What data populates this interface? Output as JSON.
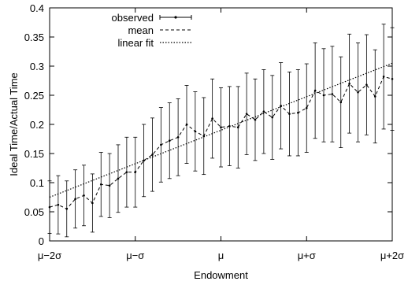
{
  "chart_data": {
    "type": "line",
    "xlabel": "Endowment",
    "ylabel": "Ideal Time/Actual Time",
    "xlim": [
      -2,
      2
    ],
    "ylim": [
      0,
      0.4
    ],
    "x_ticks": [
      {
        "value": -2,
        "label": "μ−2σ"
      },
      {
        "value": -1,
        "label": "μ−σ"
      },
      {
        "value": 0,
        "label": "μ"
      },
      {
        "value": 1,
        "label": "μ+σ"
      },
      {
        "value": 2,
        "label": "μ+2σ"
      }
    ],
    "y_ticks": [
      {
        "value": 0,
        "label": "0"
      },
      {
        "value": 0.05,
        "label": "0.05"
      },
      {
        "value": 0.1,
        "label": "0.1"
      },
      {
        "value": 0.15,
        "label": "0.15"
      },
      {
        "value": 0.2,
        "label": "0.2"
      },
      {
        "value": 0.25,
        "label": "0.25"
      },
      {
        "value": 0.3,
        "label": "0.3"
      },
      {
        "value": 0.35,
        "label": "0.35"
      },
      {
        "value": 0.4,
        "label": "0.4"
      }
    ],
    "legend_position": "top-left",
    "grid": false,
    "series": [
      {
        "name": "observed",
        "style": "errorbar",
        "x": [
          -2.0,
          -1.9,
          -1.8,
          -1.7,
          -1.6,
          -1.5,
          -1.4,
          -1.3,
          -1.2,
          -1.1,
          -1.0,
          -0.9,
          -0.8,
          -0.7,
          -0.6,
          -0.5,
          -0.4,
          -0.3,
          -0.2,
          -0.1,
          0.0,
          0.1,
          0.2,
          0.3,
          0.4,
          0.5,
          0.6,
          0.7,
          0.8,
          0.9,
          1.0,
          1.1,
          1.2,
          1.3,
          1.4,
          1.5,
          1.6,
          1.7,
          1.8,
          1.9,
          2.0
        ],
        "y": [
          0.058,
          0.062,
          0.055,
          0.072,
          0.078,
          0.065,
          0.097,
          0.095,
          0.107,
          0.118,
          0.118,
          0.138,
          0.148,
          0.165,
          0.172,
          0.178,
          0.2,
          0.188,
          0.18,
          0.21,
          0.195,
          0.197,
          0.195,
          0.218,
          0.208,
          0.222,
          0.212,
          0.232,
          0.218,
          0.22,
          0.228,
          0.258,
          0.25,
          0.252,
          0.238,
          0.27,
          0.255,
          0.268,
          0.248,
          0.282,
          0.278
        ],
        "err": [
          0.045,
          0.05,
          0.048,
          0.05,
          0.052,
          0.05,
          0.055,
          0.055,
          0.058,
          0.06,
          0.06,
          0.062,
          0.063,
          0.064,
          0.065,
          0.066,
          0.067,
          0.068,
          0.066,
          0.068,
          0.068,
          0.068,
          0.07,
          0.07,
          0.07,
          0.072,
          0.072,
          0.074,
          0.072,
          0.074,
          0.076,
          0.082,
          0.08,
          0.082,
          0.078,
          0.085,
          0.085,
          0.086,
          0.08,
          0.09,
          0.088
        ]
      },
      {
        "name": "mean",
        "style": "dashed",
        "x": [
          -2.0,
          -1.9,
          -1.8,
          -1.7,
          -1.6,
          -1.5,
          -1.4,
          -1.3,
          -1.2,
          -1.1,
          -1.0,
          -0.9,
          -0.8,
          -0.7,
          -0.6,
          -0.5,
          -0.4,
          -0.3,
          -0.2,
          -0.1,
          0.0,
          0.1,
          0.2,
          0.3,
          0.4,
          0.5,
          0.6,
          0.7,
          0.8,
          0.9,
          1.0,
          1.1,
          1.2,
          1.3,
          1.4,
          1.5,
          1.6,
          1.7,
          1.8,
          1.9,
          2.0
        ],
        "y": [
          0.058,
          0.062,
          0.055,
          0.072,
          0.078,
          0.065,
          0.097,
          0.095,
          0.107,
          0.118,
          0.118,
          0.138,
          0.148,
          0.165,
          0.172,
          0.178,
          0.2,
          0.188,
          0.18,
          0.21,
          0.195,
          0.197,
          0.195,
          0.218,
          0.208,
          0.222,
          0.212,
          0.232,
          0.218,
          0.22,
          0.228,
          0.258,
          0.25,
          0.252,
          0.238,
          0.27,
          0.255,
          0.268,
          0.248,
          0.282,
          0.278
        ]
      },
      {
        "name": "linear fit",
        "style": "dotted",
        "x": [
          -2.0,
          2.0
        ],
        "y": [
          0.075,
          0.305
        ]
      }
    ]
  }
}
